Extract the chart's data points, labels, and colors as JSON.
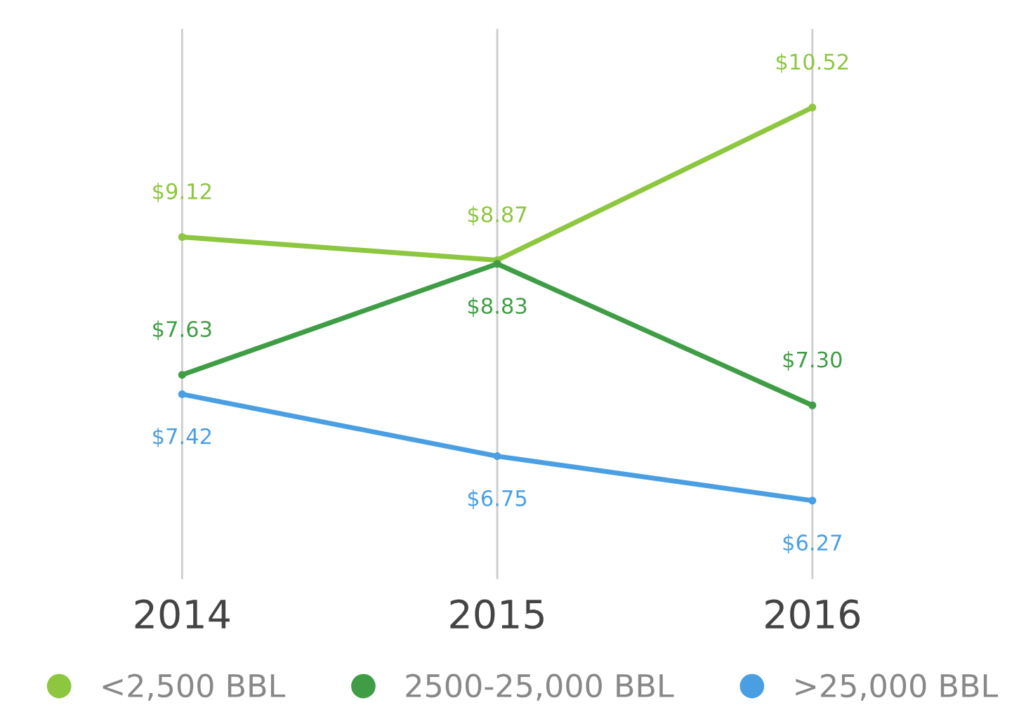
{
  "chart_data": {
    "type": "line",
    "categories": [
      "2014",
      "2015",
      "2016"
    ],
    "series": [
      {
        "name": "<2,500 BBL",
        "color": "#8dc63f",
        "values": [
          9.12,
          8.87,
          10.52
        ],
        "value_labels": [
          "$9.12",
          "$8.87",
          "$10.52"
        ]
      },
      {
        "name": "2500-25,000 BBL",
        "color": "#3f9e45",
        "values": [
          7.63,
          8.83,
          7.3
        ],
        "value_labels": [
          "$7.63",
          "$8.83",
          "$7.30"
        ]
      },
      {
        "name": ">25,000 BBL",
        "color": "#4a9fe3",
        "values": [
          7.42,
          6.75,
          6.27
        ],
        "value_labels": [
          "$7.42",
          "$6.75",
          "$6.27"
        ]
      }
    ],
    "grid": "x",
    "legend": "bottom",
    "marker": "circle",
    "line_style": "solid",
    "tick_labels": "x"
  }
}
